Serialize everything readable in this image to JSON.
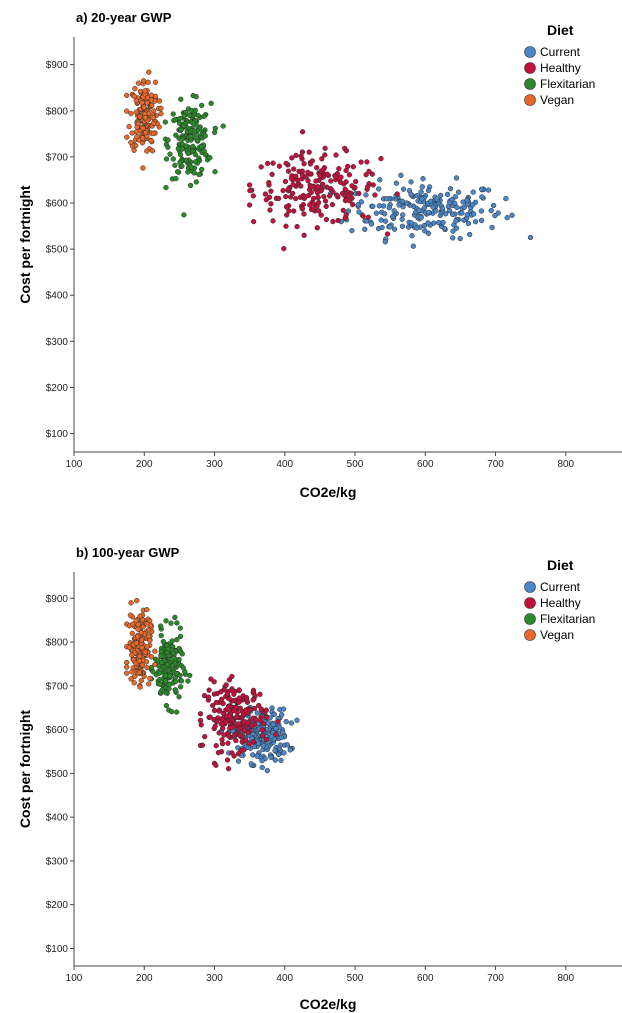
{
  "chart_data": [
    {
      "type": "scatter",
      "title": "a) 20-year GWP",
      "xlabel": "CO2e/kg",
      "ylabel": "Cost per fortnight",
      "xlim": [
        100,
        880
      ],
      "ylim": [
        60,
        960
      ],
      "xticks": [
        "100",
        "200",
        "300",
        "400",
        "500",
        "600",
        "700",
        "800"
      ],
      "yticks": [
        "$100",
        "$200",
        "$300",
        "$400",
        "$500",
        "$600",
        "$700",
        "$800",
        "$900"
      ],
      "grid": false,
      "legend": {
        "title": "Diet",
        "placement": "top-right"
      },
      "series": [
        {
          "name": "Current",
          "color": "#4a86c8",
          "cx": 600,
          "cy": 585,
          "sx": 55,
          "sy": 30,
          "n": 220,
          "min_x": 465,
          "max_x": 770
        },
        {
          "name": "Healthy",
          "color": "#c0123a",
          "cx": 445,
          "cy": 630,
          "sx": 45,
          "sy": 38,
          "n": 200,
          "min_x": 350,
          "max_x": 560
        },
        {
          "name": "Flexitarian",
          "color": "#2a8a2a",
          "cx": 265,
          "cy": 735,
          "sx": 15,
          "sy": 40,
          "n": 180,
          "min_x": 230,
          "max_x": 320
        },
        {
          "name": "Vegan",
          "color": "#e8692a",
          "cx": 200,
          "cy": 790,
          "sx": 10,
          "sy": 40,
          "n": 170,
          "min_x": 175,
          "max_x": 225
        }
      ]
    },
    {
      "type": "scatter",
      "title": "b) 100-year GWP",
      "xlabel": "CO2e/kg",
      "ylabel": "Cost per fortnight",
      "xlim": [
        100,
        880
      ],
      "ylim": [
        60,
        960
      ],
      "xticks": [
        "100",
        "200",
        "300",
        "400",
        "500",
        "600",
        "700",
        "800"
      ],
      "yticks": [
        "$100",
        "$200",
        "$300",
        "$400",
        "$500",
        "$600",
        "$700",
        "$800",
        "$900"
      ],
      "grid": false,
      "legend": {
        "title": "Diet",
        "placement": "top-right"
      },
      "series": [
        {
          "name": "Current",
          "color": "#4a86c8",
          "cx": 365,
          "cy": 585,
          "sx": 20,
          "sy": 30,
          "n": 220,
          "min_x": 310,
          "max_x": 425
        },
        {
          "name": "Healthy",
          "color": "#c0123a",
          "cx": 330,
          "cy": 630,
          "sx": 22,
          "sy": 38,
          "n": 200,
          "min_x": 280,
          "max_x": 400
        },
        {
          "name": "Flexitarian",
          "color": "#2a8a2a",
          "cx": 235,
          "cy": 740,
          "sx": 10,
          "sy": 40,
          "n": 180,
          "min_x": 210,
          "max_x": 270
        },
        {
          "name": "Vegan",
          "color": "#e8692a",
          "cx": 193,
          "cy": 790,
          "sx": 8,
          "sy": 40,
          "n": 170,
          "min_x": 175,
          "max_x": 215
        }
      ]
    }
  ]
}
